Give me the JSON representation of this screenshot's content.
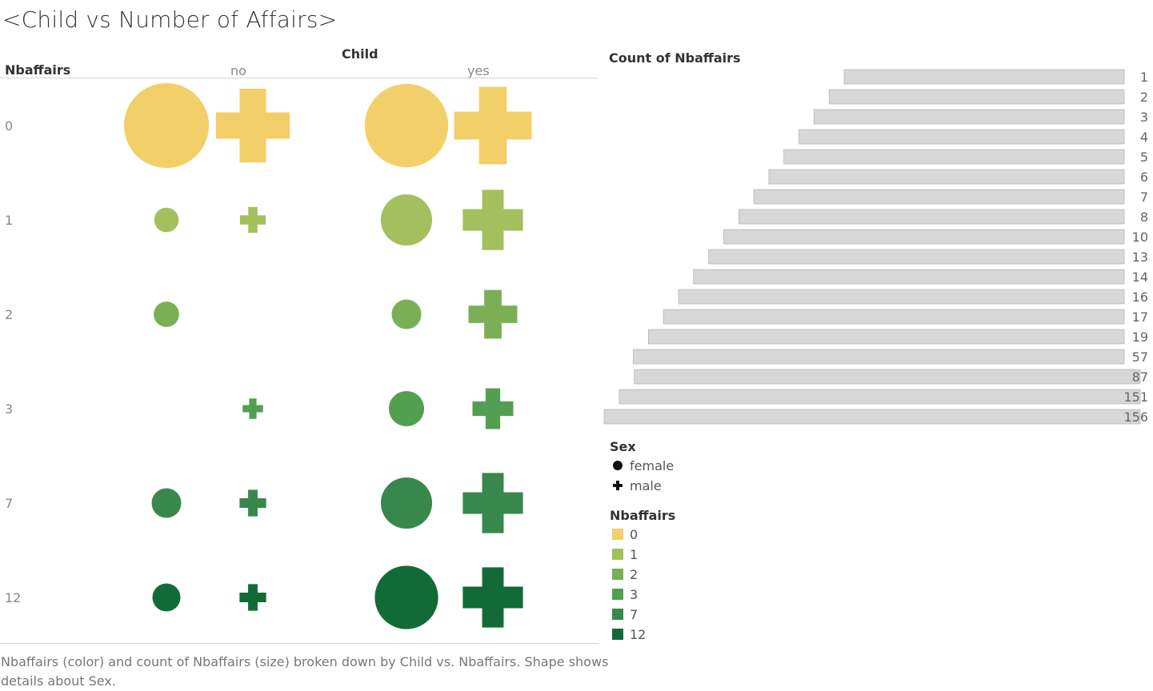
{
  "title": "<Child vs Number of Affairs>",
  "matrix": {
    "column_header": "Child",
    "row_header": "Nbaffairs",
    "columns": [
      "no",
      "yes"
    ]
  },
  "bar_panel": {
    "title": "Count of Nbaffairs"
  },
  "legend_sex": {
    "title": "Sex",
    "items": [
      {
        "label": "female",
        "shape": "circle"
      },
      {
        "label": "male",
        "shape": "plus"
      }
    ]
  },
  "legend_nbaffairs": {
    "title": "Nbaffairs",
    "items": [
      {
        "label": "0",
        "color": "#f2cf68"
      },
      {
        "label": "1",
        "color": "#a4bf5d"
      },
      {
        "label": "2",
        "color": "#7aaf55"
      },
      {
        "label": "3",
        "color": "#529f52"
      },
      {
        "label": "7",
        "color": "#38884b"
      },
      {
        "label": "12",
        "color": "#126b36"
      }
    ]
  },
  "caption": "Nbaffairs (color) and count of Nbaffairs (size) broken down by Child vs. Nbaffairs.  Shape shows details about Sex.",
  "chart_data": [
    {
      "type": "scatter",
      "description_mark": "shape-matrix",
      "x_field": "Child",
      "y_field": "Nbaffairs",
      "categories_x": [
        "no",
        "yes"
      ],
      "categories_y": [
        "0",
        "1",
        "2",
        "3",
        "7",
        "12"
      ],
      "size_field": "Count of Nbaffairs",
      "shape_field": "Sex",
      "color_field": "Nbaffairs",
      "points": [
        {
          "nbaffairs": "0",
          "child": "no",
          "sex": "female",
          "count": 156
        },
        {
          "nbaffairs": "0",
          "child": "no",
          "sex": "male",
          "count": 131
        },
        {
          "nbaffairs": "0",
          "child": "yes",
          "sex": "female",
          "count": 151
        },
        {
          "nbaffairs": "0",
          "child": "yes",
          "sex": "male",
          "count": 144
        },
        {
          "nbaffairs": "1",
          "child": "no",
          "sex": "female",
          "count": 13
        },
        {
          "nbaffairs": "1",
          "child": "no",
          "sex": "male",
          "count": 16
        },
        {
          "nbaffairs": "1",
          "child": "yes",
          "sex": "female",
          "count": 57
        },
        {
          "nbaffairs": "1",
          "child": "yes",
          "sex": "male",
          "count": 87
        },
        {
          "nbaffairs": "2",
          "child": "no",
          "sex": "female",
          "count": 14
        },
        {
          "nbaffairs": "2",
          "child": "yes",
          "sex": "female",
          "count": 19
        },
        {
          "nbaffairs": "2",
          "child": "yes",
          "sex": "male",
          "count": 57
        },
        {
          "nbaffairs": "3",
          "child": "no",
          "sex": "male",
          "count": 10
        },
        {
          "nbaffairs": "3",
          "child": "yes",
          "sex": "female",
          "count": 27
        },
        {
          "nbaffairs": "3",
          "child": "yes",
          "sex": "male",
          "count": 40
        },
        {
          "nbaffairs": "7",
          "child": "no",
          "sex": "female",
          "count": 19
        },
        {
          "nbaffairs": "7",
          "child": "no",
          "sex": "male",
          "count": 17
        },
        {
          "nbaffairs": "7",
          "child": "yes",
          "sex": "female",
          "count": 57
        },
        {
          "nbaffairs": "7",
          "child": "yes",
          "sex": "male",
          "count": 87
        },
        {
          "nbaffairs": "12",
          "child": "no",
          "sex": "female",
          "count": 17
        },
        {
          "nbaffairs": "12",
          "child": "no",
          "sex": "male",
          "count": 17
        },
        {
          "nbaffairs": "12",
          "child": "yes",
          "sex": "female",
          "count": 87
        },
        {
          "nbaffairs": "12",
          "child": "yes",
          "sex": "male",
          "count": 87
        }
      ]
    },
    {
      "type": "bar",
      "title": "Count of Nbaffairs",
      "orientation": "horizontal",
      "categories": [
        "1",
        "2",
        "3",
        "4",
        "5",
        "6",
        "7",
        "8",
        "10",
        "13",
        "14",
        "16",
        "17",
        "19",
        "57",
        "87",
        "151",
        "156"
      ],
      "values": [
        1,
        2,
        3,
        4,
        5,
        6,
        7,
        8,
        10,
        13,
        14,
        16,
        17,
        19,
        57,
        87,
        151,
        156
      ],
      "bar_color": "#d7d7d7"
    }
  ]
}
